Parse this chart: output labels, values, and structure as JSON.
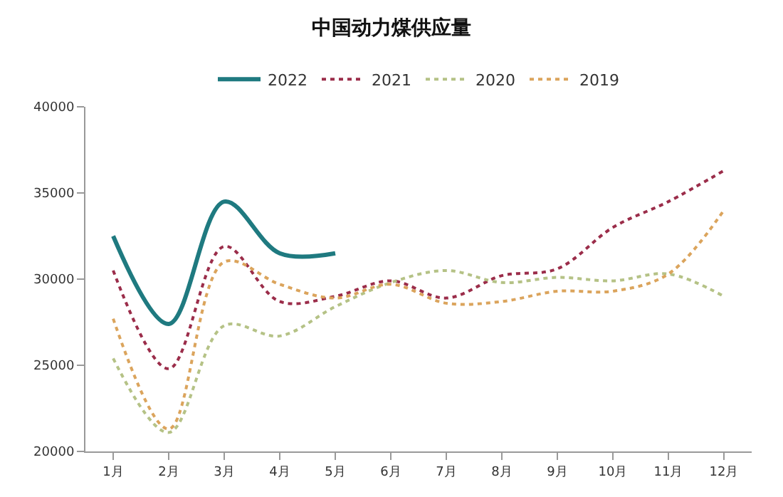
{
  "chart_data": {
    "type": "line",
    "title": "中国动力煤供应量",
    "categories": [
      "1月",
      "2月",
      "3月",
      "4月",
      "5月",
      "6月",
      "7月",
      "8月",
      "9月",
      "10月",
      "11月",
      "12月"
    ],
    "series": [
      {
        "name": "2022",
        "color": "#1f7a80",
        "line_style": "solid",
        "values": [
          32500,
          27400,
          34500,
          31500,
          31500,
          null,
          null,
          null,
          null,
          null,
          null,
          null
        ]
      },
      {
        "name": "2021",
        "color": "#9b2d4a",
        "line_style": "dotted",
        "values": [
          30500,
          24800,
          31900,
          28700,
          29000,
          29900,
          28900,
          30200,
          30600,
          33000,
          34500,
          36300
        ]
      },
      {
        "name": "2020",
        "color": "#b5c286",
        "line_style": "dotted",
        "values": [
          25400,
          21100,
          27300,
          26700,
          28400,
          29800,
          30500,
          29800,
          30100,
          29900,
          30300,
          29000
        ]
      },
      {
        "name": "2019",
        "color": "#dba45c",
        "line_style": "dotted",
        "values": [
          27700,
          21300,
          31000,
          29700,
          28900,
          29700,
          28600,
          28700,
          29300,
          29300,
          30300,
          34000
        ]
      }
    ],
    "ylim": [
      20000,
      40000
    ],
    "yticks": [
      20000,
      25000,
      30000,
      35000,
      40000
    ],
    "legend": "top",
    "marker": "none"
  }
}
